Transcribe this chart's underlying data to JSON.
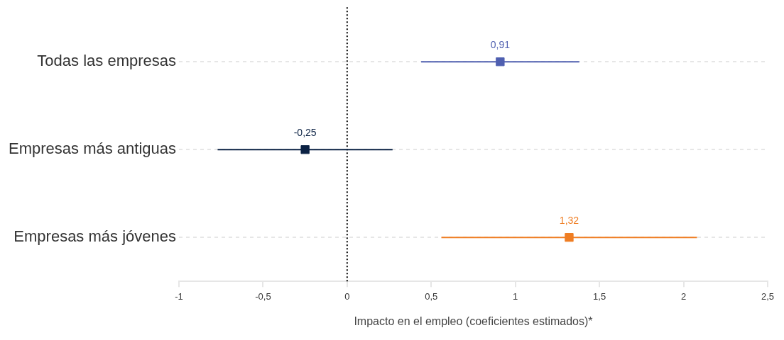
{
  "chart_data": {
    "type": "scatter",
    "orientation": "horizontal",
    "xlabel": "Impacto en el empleo (coeficientes estimados)*",
    "categories": [
      "Todas las empresas",
      "Empresas más antiguas",
      "Empresas más jóvenes"
    ],
    "values": [
      0.91,
      -0.25,
      1.32
    ],
    "colors": [
      "#4f5fb0",
      "#0b2244",
      "#ef7d22"
    ],
    "errors": [
      [
        0.44,
        1.38
      ],
      [
        -0.77,
        0.27
      ],
      [
        0.56,
        2.08
      ]
    ],
    "value_labels": [
      "0,91",
      "-0,25",
      "1,32"
    ],
    "xlim": [
      -1,
      2.5
    ],
    "xticks": [
      {
        "value": -1,
        "label": "-1"
      },
      {
        "value": -0.5,
        "label": "-0,5"
      },
      0,
      {
        "value": 0.5,
        "label": "0,5"
      },
      1,
      {
        "value": 1.5,
        "label": "1,5"
      },
      2,
      {
        "value": 2.5,
        "label": "2,5"
      }
    ],
    "ref_lines": [
      {
        "axis": "x",
        "value": 0,
        "label": null,
        "color": "#000000",
        "line_style": "dotted"
      }
    ],
    "grid": "y",
    "marker": "square",
    "legend": false
  }
}
